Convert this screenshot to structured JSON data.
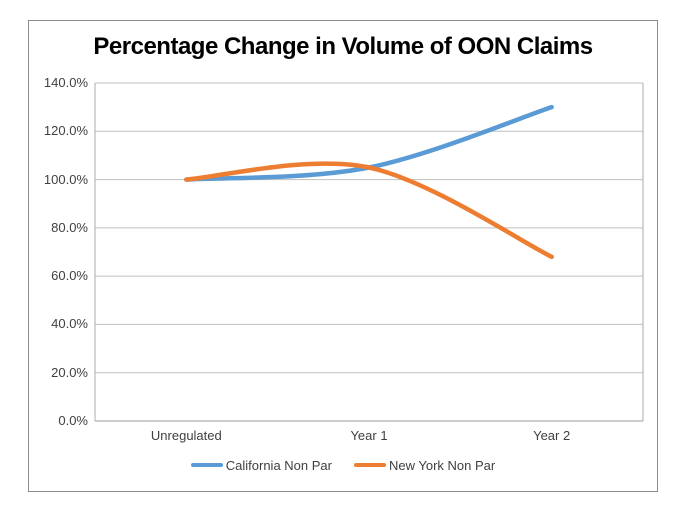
{
  "chart_data": {
    "type": "line",
    "title": "Percentage Change in Volume of OON Claims",
    "categories": [
      "Unregulated",
      "Year 1",
      "Year 2"
    ],
    "series": [
      {
        "name": "California Non Par",
        "color": "#5B9BD5",
        "values": [
          100.0,
          105.0,
          130.0
        ]
      },
      {
        "name": "New York Non Par",
        "color": "#ED7D31",
        "values": [
          100.0,
          105.0,
          68.0
        ]
      }
    ],
    "value_unit": "percent",
    "smooth_lines": true,
    "line_width": 4.5,
    "ylim": [
      0,
      140
    ],
    "y_tick_step": 20,
    "y_tick_labels": [
      "0.0%",
      "20.0%",
      "40.0%",
      "60.0%",
      "80.0%",
      "100.0%",
      "120.0%",
      "140.0%"
    ],
    "xlabel": "",
    "ylabel": "",
    "grid": true,
    "legend_position": "bottom",
    "colors": {
      "gridline": "#BFBFBF",
      "plot_border": "#ACACAC",
      "axis_line": "#9B9B9B",
      "tick_label": "#3F3F3F",
      "title": "#000000",
      "chart_border": "#8C8C8C",
      "background": "#FFFFFF"
    }
  }
}
